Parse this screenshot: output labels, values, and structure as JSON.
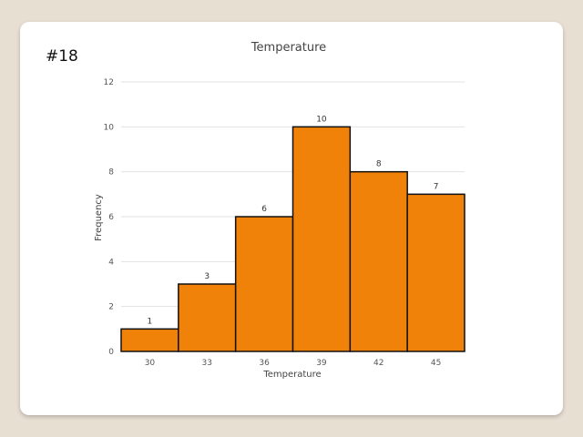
{
  "slide": {
    "number": "#18"
  },
  "colors": {
    "bar_fill": "#f0820a",
    "bar_stroke": "#111111",
    "grid": "#e3e3e3"
  },
  "chart_data": {
    "type": "bar",
    "title": "Temperature",
    "xlabel": "Temperature",
    "ylabel": "Frequency",
    "categories": [
      "30",
      "33",
      "36",
      "39",
      "42",
      "45"
    ],
    "values": [
      1,
      3,
      6,
      10,
      8,
      7
    ],
    "yticks": [
      0,
      2,
      4,
      6,
      8,
      10,
      12
    ],
    "ylim": [
      0,
      12
    ],
    "grid": true,
    "data_labels": true
  }
}
